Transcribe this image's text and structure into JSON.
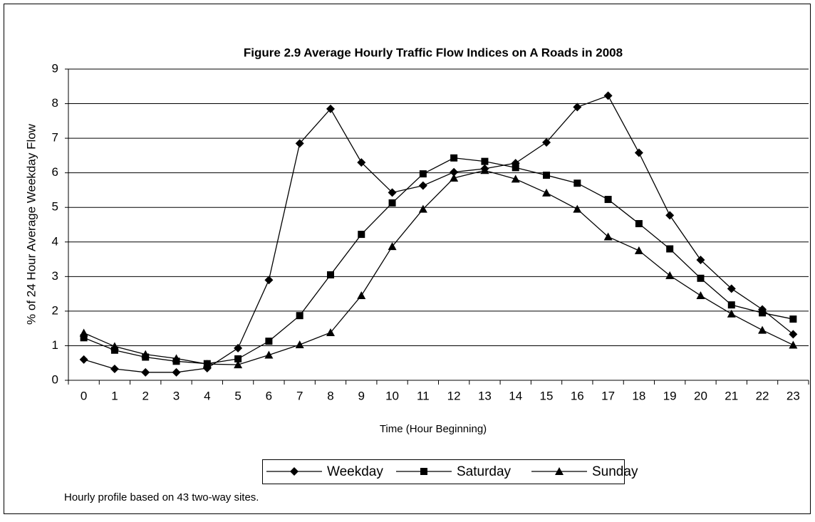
{
  "chart_data": {
    "type": "line",
    "title": "Figure 2.9 Average Hourly Traffic Flow Indices on A Roads in 2008",
    "x_label": "Time (Hour Beginning)",
    "y_label": "% of 24 Hour Average Weekday Flow",
    "note": "Hourly profile based on 43 two-way sites.",
    "x": [
      0,
      1,
      2,
      3,
      4,
      5,
      6,
      7,
      8,
      9,
      10,
      11,
      12,
      13,
      14,
      15,
      16,
      17,
      18,
      19,
      20,
      21,
      22,
      23
    ],
    "xlim": [
      -0.5,
      23.5
    ],
    "xticks": [
      0,
      1,
      2,
      3,
      4,
      5,
      6,
      7,
      8,
      9,
      10,
      11,
      12,
      13,
      14,
      15,
      16,
      17,
      18,
      19,
      20,
      21,
      22,
      23
    ],
    "ylim": [
      0,
      9
    ],
    "yticks": [
      0,
      1,
      2,
      3,
      4,
      5,
      6,
      7,
      8,
      9
    ],
    "grid": true,
    "legend": "bottom",
    "series": [
      {
        "name": "Weekday",
        "color": "#000000",
        "marker": "diamond",
        "values": [
          0.6,
          0.33,
          0.23,
          0.23,
          0.35,
          0.93,
          2.9,
          6.85,
          7.85,
          6.3,
          5.43,
          5.63,
          6.02,
          6.12,
          6.28,
          6.88,
          7.9,
          8.23,
          6.58,
          4.77,
          3.48,
          2.65,
          2.05,
          1.33
        ]
      },
      {
        "name": "Saturday",
        "color": "#000000",
        "marker": "square",
        "values": [
          1.23,
          0.87,
          0.67,
          0.55,
          0.48,
          0.62,
          1.13,
          1.87,
          3.05,
          4.22,
          5.13,
          5.97,
          6.43,
          6.33,
          6.15,
          5.93,
          5.7,
          5.23,
          4.53,
          3.8,
          2.95,
          2.18,
          1.95,
          1.77
        ]
      },
      {
        "name": "Sunday",
        "color": "#000000",
        "marker": "triangle",
        "values": [
          1.37,
          0.98,
          0.75,
          0.63,
          0.47,
          0.45,
          0.73,
          1.03,
          1.38,
          2.45,
          3.87,
          4.95,
          5.85,
          6.07,
          5.82,
          5.42,
          4.95,
          4.15,
          3.75,
          3.03,
          2.45,
          1.92,
          1.45,
          1.02
        ]
      }
    ]
  }
}
